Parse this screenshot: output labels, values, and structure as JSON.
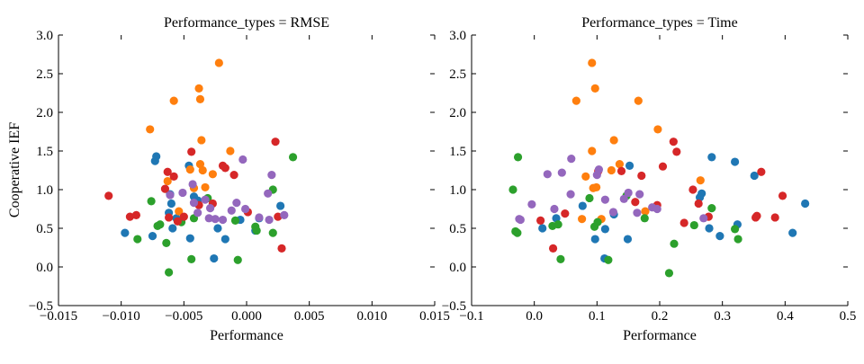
{
  "figure": {
    "ylabel": "Cooperative IEF"
  },
  "colors": {
    "blue": "#1f77b4",
    "orange": "#ff7f0e",
    "green": "#2ca02c",
    "red": "#d62728",
    "purple": "#9467bd"
  },
  "chart_data": [
    {
      "type": "scatter",
      "title": "Performance_types = RMSE",
      "xlabel": "Performance",
      "ylabel": "Cooperative IEF",
      "xlim": [
        -0.015,
        0.015
      ],
      "ylim": [
        -0.5,
        3.0
      ],
      "xticks": [
        -0.015,
        -0.01,
        -0.005,
        0.0,
        0.005,
        0.01,
        0.015
      ],
      "xtick_labels": [
        "−0.015",
        "−0.010",
        "−0.005",
        "0.000",
        "0.005",
        "0.010",
        "0.015"
      ],
      "yticks": [
        -0.5,
        0.0,
        0.5,
        1.0,
        1.5,
        2.0,
        2.5,
        3.0
      ],
      "ytick_labels": [
        "−0.5",
        "0.0",
        "0.5",
        "1.0",
        "1.5",
        "2.0",
        "2.5",
        "3.0"
      ],
      "grid": false,
      "series": [
        {
          "color_key": "blue",
          "points": [
            [
              -0.0097,
              0.44
            ],
            [
              -0.0073,
              1.37
            ],
            [
              -0.0072,
              1.43
            ],
            [
              -0.0075,
              0.4
            ],
            [
              -0.0061,
              0.94
            ],
            [
              -0.006,
              0.82
            ],
            [
              -0.0062,
              0.7
            ],
            [
              -0.0059,
              0.5
            ],
            [
              -0.0056,
              0.63
            ],
            [
              -0.0046,
              1.31
            ],
            [
              -0.0045,
              0.37
            ],
            [
              -0.0042,
              0.91
            ],
            [
              -0.0039,
              0.86
            ],
            [
              -0.0026,
              0.11
            ],
            [
              -0.0023,
              0.5
            ],
            [
              -0.0017,
              0.36
            ],
            [
              -0.0005,
              0.61
            ],
            [
              0.0007,
              0.47
            ],
            [
              0.001,
              0.63
            ],
            [
              0.0027,
              0.79
            ]
          ]
        },
        {
          "color_key": "orange",
          "points": [
            [
              -0.0077,
              1.78
            ],
            [
              -0.0063,
              1.11
            ],
            [
              -0.0058,
              2.15
            ],
            [
              -0.0054,
              0.72
            ],
            [
              -0.0045,
              1.26
            ],
            [
              -0.0042,
              1.02
            ],
            [
              -0.0038,
              2.31
            ],
            [
              -0.0037,
              2.17
            ],
            [
              -0.0037,
              1.33
            ],
            [
              -0.0036,
              1.64
            ],
            [
              -0.0035,
              1.25
            ],
            [
              -0.0033,
              1.03
            ],
            [
              -0.0027,
              1.2
            ],
            [
              -0.0022,
              2.64
            ],
            [
              -0.0013,
              1.5
            ]
          ]
        },
        {
          "color_key": "green",
          "points": [
            [
              -0.0087,
              0.36
            ],
            [
              -0.0076,
              0.85
            ],
            [
              -0.0071,
              0.53
            ],
            [
              -0.0069,
              0.55
            ],
            [
              -0.0064,
              0.31
            ],
            [
              -0.0062,
              -0.07
            ],
            [
              -0.0052,
              0.58
            ],
            [
              -0.0044,
              0.1
            ],
            [
              -0.0042,
              0.63
            ],
            [
              -0.0031,
              0.89
            ],
            [
              -0.0009,
              0.6
            ],
            [
              -0.0007,
              0.09
            ],
            [
              0.0007,
              0.52
            ],
            [
              0.0008,
              0.47
            ],
            [
              0.0021,
              1.0
            ],
            [
              0.0021,
              0.44
            ],
            [
              0.0037,
              1.42
            ]
          ]
        },
        {
          "color_key": "red",
          "points": [
            [
              -0.011,
              0.92
            ],
            [
              -0.0093,
              0.65
            ],
            [
              -0.0088,
              0.67
            ],
            [
              -0.0065,
              1.01
            ],
            [
              -0.0063,
              1.23
            ],
            [
              -0.0062,
              0.64
            ],
            [
              -0.0058,
              1.17
            ],
            [
              -0.0055,
              0.59
            ],
            [
              -0.005,
              0.65
            ],
            [
              -0.0044,
              1.49
            ],
            [
              -0.0038,
              0.8
            ],
            [
              -0.0027,
              0.82
            ],
            [
              -0.0019,
              1.31
            ],
            [
              -0.0017,
              1.28
            ],
            [
              -0.001,
              1.19
            ],
            [
              0.0001,
              0.71
            ],
            [
              0.0023,
              1.62
            ],
            [
              0.0025,
              0.65
            ],
            [
              0.0028,
              0.24
            ]
          ]
        },
        {
          "color_key": "purple",
          "points": [
            [
              -0.0061,
              0.93
            ],
            [
              -0.0051,
              0.96
            ],
            [
              -0.0043,
              1.07
            ],
            [
              -0.0042,
              0.83
            ],
            [
              -0.0039,
              0.7
            ],
            [
              -0.0033,
              0.87
            ],
            [
              -0.003,
              0.63
            ],
            [
              -0.0029,
              0.76
            ],
            [
              -0.0025,
              0.62
            ],
            [
              -0.0019,
              0.61
            ],
            [
              -0.0012,
              0.73
            ],
            [
              -0.0008,
              0.83
            ],
            [
              -0.0003,
              1.39
            ],
            [
              -0.0001,
              0.75
            ],
            [
              0.001,
              0.64
            ],
            [
              0.0017,
              0.95
            ],
            [
              0.0018,
              0.61
            ],
            [
              0.002,
              1.19
            ],
            [
              0.003,
              0.67
            ]
          ]
        }
      ]
    },
    {
      "type": "scatter",
      "title": "Performance_types = Time",
      "xlabel": "Performance",
      "xlim": [
        -0.1,
        0.5
      ],
      "ylim": [
        -0.5,
        3.0
      ],
      "xticks": [
        -0.1,
        0.0,
        0.1,
        0.2,
        0.3,
        0.4,
        0.5
      ],
      "xtick_labels": [
        "−0.1",
        "0.0",
        "0.1",
        "0.2",
        "0.3",
        "0.4",
        "0.5"
      ],
      "yticks": [
        -0.5,
        0.0,
        0.5,
        1.0,
        1.5,
        2.0,
        2.5,
        3.0
      ],
      "ytick_labels": [
        "−0.5",
        "0.0",
        "0.5",
        "1.0",
        "1.5",
        "2.0",
        "2.5",
        "3.0"
      ],
      "grid": false,
      "series": [
        {
          "color_key": "blue",
          "points": [
            [
              0.013,
              0.5
            ],
            [
              0.035,
              0.63
            ],
            [
              0.077,
              0.79
            ],
            [
              0.097,
              0.36
            ],
            [
              0.112,
              0.11
            ],
            [
              0.113,
              0.49
            ],
            [
              0.127,
              0.68
            ],
            [
              0.149,
              0.36
            ],
            [
              0.152,
              1.31
            ],
            [
              0.267,
              0.95
            ],
            [
              0.264,
              0.9
            ],
            [
              0.283,
              1.42
            ],
            [
              0.279,
              0.5
            ],
            [
              0.296,
              0.4
            ],
            [
              0.32,
              1.36
            ],
            [
              0.324,
              0.55
            ],
            [
              0.351,
              1.18
            ],
            [
              0.412,
              0.44
            ],
            [
              0.432,
              0.82
            ]
          ]
        },
        {
          "color_key": "orange",
          "points": [
            [
              0.067,
              2.15
            ],
            [
              0.076,
              0.62
            ],
            [
              0.082,
              1.17
            ],
            [
              0.092,
              1.5
            ],
            [
              0.092,
              2.64
            ],
            [
              0.094,
              1.02
            ],
            [
              0.097,
              2.31
            ],
            [
              0.099,
              1.03
            ],
            [
              0.107,
              0.62
            ],
            [
              0.123,
              1.25
            ],
            [
              0.127,
              1.64
            ],
            [
              0.136,
              1.33
            ],
            [
              0.166,
              2.15
            ],
            [
              0.177,
              0.72
            ],
            [
              0.197,
              1.78
            ],
            [
              0.265,
              1.12
            ]
          ]
        },
        {
          "color_key": "green",
          "points": [
            [
              -0.034,
              1.0
            ],
            [
              -0.03,
              0.46
            ],
            [
              -0.026,
              1.42
            ],
            [
              -0.027,
              0.44
            ],
            [
              0.029,
              0.53
            ],
            [
              0.038,
              0.55
            ],
            [
              0.042,
              0.1
            ],
            [
              0.088,
              0.89
            ],
            [
              0.096,
              0.52
            ],
            [
              0.101,
              0.58
            ],
            [
              0.118,
              0.09
            ],
            [
              0.147,
              0.92
            ],
            [
              0.176,
              0.63
            ],
            [
              0.215,
              -0.08
            ],
            [
              0.223,
              0.3
            ],
            [
              0.255,
              0.54
            ],
            [
              0.283,
              0.76
            ],
            [
              0.32,
              0.49
            ],
            [
              0.325,
              0.36
            ]
          ]
        },
        {
          "color_key": "red",
          "points": [
            [
              0.01,
              0.6
            ],
            [
              0.03,
              0.24
            ],
            [
              0.049,
              0.69
            ],
            [
              0.102,
              1.24
            ],
            [
              0.139,
              1.24
            ],
            [
              0.161,
              0.84
            ],
            [
              0.171,
              1.18
            ],
            [
              0.196,
              0.8
            ],
            [
              0.205,
              1.3
            ],
            [
              0.222,
              1.62
            ],
            [
              0.227,
              1.49
            ],
            [
              0.239,
              0.57
            ],
            [
              0.253,
              1.0
            ],
            [
              0.262,
              0.82
            ],
            [
              0.278,
              0.65
            ],
            [
              0.353,
              0.64
            ],
            [
              0.355,
              0.66
            ],
            [
              0.362,
              1.23
            ],
            [
              0.384,
              0.64
            ],
            [
              0.396,
              0.92
            ]
          ]
        },
        {
          "color_key": "purple",
          "points": [
            [
              -0.024,
              0.62
            ],
            [
              -0.022,
              0.61
            ],
            [
              -0.004,
              0.81
            ],
            [
              0.021,
              1.2
            ],
            [
              0.032,
              0.75
            ],
            [
              0.044,
              1.22
            ],
            [
              0.058,
              0.94
            ],
            [
              0.059,
              1.4
            ],
            [
              0.1,
              1.19
            ],
            [
              0.103,
              1.26
            ],
            [
              0.113,
              0.87
            ],
            [
              0.126,
              0.71
            ],
            [
              0.143,
              0.88
            ],
            [
              0.15,
              0.96
            ],
            [
              0.164,
              0.7
            ],
            [
              0.168,
              0.94
            ],
            [
              0.188,
              0.77
            ],
            [
              0.196,
              0.75
            ],
            [
              0.27,
              0.63
            ]
          ]
        }
      ]
    }
  ]
}
